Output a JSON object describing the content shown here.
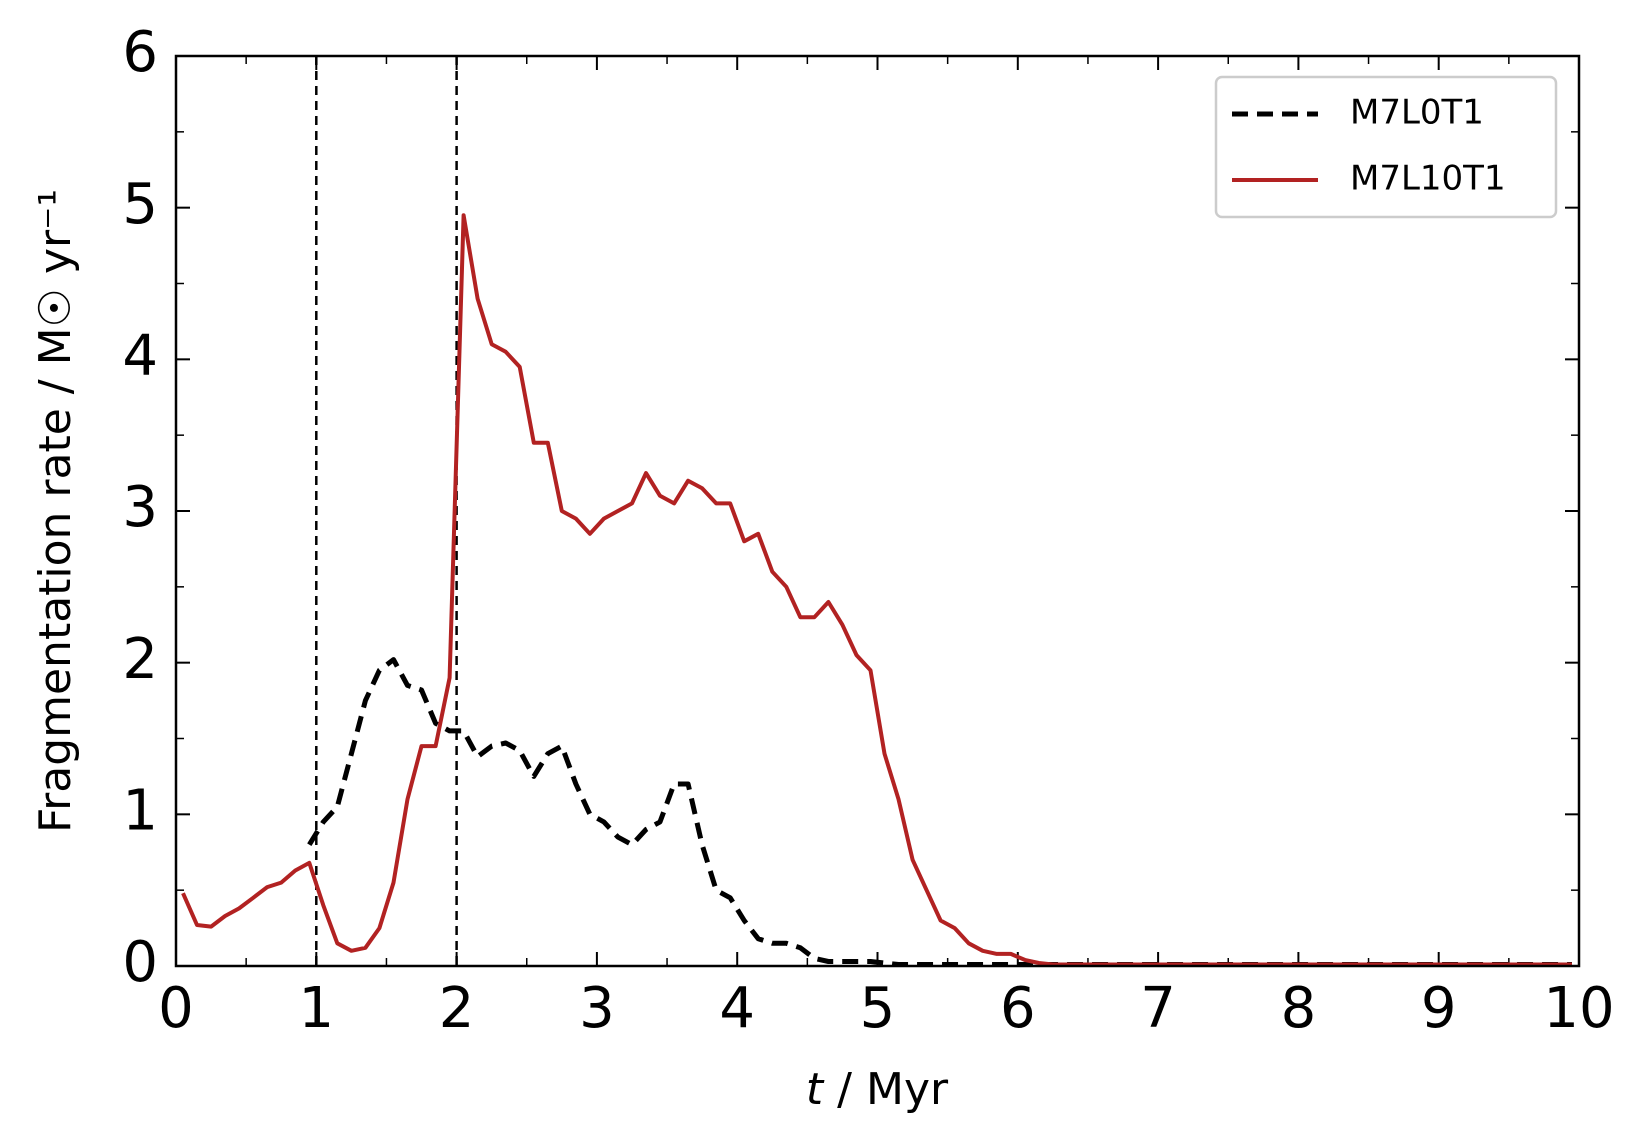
{
  "chart_data": {
    "type": "line",
    "xlabel": {
      "var": "t",
      "unit": " / Myr"
    },
    "ylabel": "Fragmentation rate / M☉ yr⁻¹",
    "x": [
      0.05,
      0.15,
      0.25,
      0.35,
      0.45,
      0.55,
      0.65,
      0.75,
      0.85,
      0.95,
      1.05,
      1.15,
      1.25,
      1.35,
      1.45,
      1.55,
      1.65,
      1.75,
      1.85,
      1.95,
      2.05,
      2.15,
      2.25,
      2.35,
      2.45,
      2.55,
      2.65,
      2.75,
      2.85,
      2.95,
      3.05,
      3.15,
      3.25,
      3.35,
      3.45,
      3.55,
      3.65,
      3.75,
      3.85,
      3.95,
      4.05,
      4.15,
      4.25,
      4.35,
      4.45,
      4.55,
      4.65,
      4.75,
      4.85,
      4.95,
      5.05,
      5.15,
      5.25,
      5.35,
      5.45,
      5.55,
      5.65,
      5.75,
      5.85,
      5.95,
      6.05,
      6.15,
      6.25,
      6.35,
      6.45,
      6.55,
      6.65,
      6.75,
      6.85,
      6.95,
      7.05,
      7.15,
      7.25,
      7.35,
      7.45,
      7.55,
      7.65,
      7.75,
      7.85,
      7.95,
      8.05,
      8.15,
      8.25,
      8.35,
      8.45,
      8.55,
      8.65,
      8.75,
      8.85,
      8.95,
      9.05,
      9.15,
      9.25,
      9.35,
      9.45,
      9.55,
      9.65,
      9.75,
      9.85,
      9.95
    ],
    "series": [
      {
        "name": "M7L0T1",
        "color": "#000000",
        "dash": true,
        "values": [
          null,
          null,
          null,
          null,
          null,
          null,
          null,
          null,
          null,
          0.8,
          0.95,
          1.05,
          1.4,
          1.75,
          1.95,
          2.02,
          1.85,
          1.82,
          1.6,
          1.55,
          1.55,
          1.38,
          1.45,
          1.47,
          1.42,
          1.25,
          1.4,
          1.45,
          1.2,
          1.0,
          0.95,
          0.85,
          0.8,
          0.9,
          0.95,
          1.2,
          1.2,
          0.8,
          0.5,
          0.45,
          0.3,
          0.18,
          0.15,
          0.15,
          0.12,
          0.05,
          0.03,
          0.03,
          0.03,
          0.03,
          0.02,
          0.01,
          0.01,
          0.01,
          0.01,
          0.01,
          0.01,
          0.01,
          0.01,
          0.01,
          0.01,
          0.01,
          0.01,
          0.01,
          0.01,
          0.01,
          0.01,
          0.01,
          0.01,
          0.01,
          0.01,
          0.01,
          0.01,
          0.01,
          0.01,
          0.01,
          0.01,
          0.01,
          0.01,
          0.01,
          0.01,
          0.01,
          0.01,
          0.01,
          0.01,
          0.01,
          0.01,
          0.01,
          0.01,
          0.01,
          0.01,
          0.01,
          0.01,
          0.01,
          0.01,
          0.01,
          0.01,
          0.01,
          0.01,
          0.01
        ]
      },
      {
        "name": "M7L10T1",
        "color": "#b22222",
        "dash": false,
        "values": [
          0.48,
          0.27,
          0.26,
          0.33,
          0.38,
          0.45,
          0.52,
          0.55,
          0.63,
          0.68,
          0.4,
          0.15,
          0.1,
          0.12,
          0.25,
          0.55,
          1.1,
          1.45,
          1.45,
          1.9,
          4.95,
          4.4,
          4.1,
          4.05,
          3.95,
          3.45,
          3.45,
          3.0,
          2.95,
          2.85,
          2.95,
          3.0,
          3.05,
          3.25,
          3.1,
          3.05,
          3.2,
          3.15,
          3.05,
          3.05,
          2.8,
          2.85,
          2.6,
          2.5,
          2.3,
          2.3,
          2.4,
          2.25,
          2.05,
          1.95,
          1.4,
          1.1,
          0.7,
          0.5,
          0.3,
          0.25,
          0.15,
          0.1,
          0.08,
          0.08,
          0.04,
          0.02,
          0.01,
          0.01,
          0.01,
          0.01,
          0.01,
          0.01,
          0.01,
          0.01,
          0.01,
          0.01,
          0.01,
          0.01,
          0.01,
          0.01,
          0.01,
          0.01,
          0.01,
          0.01,
          0.01,
          0.01,
          0.01,
          0.01,
          0.01,
          0.01,
          0.01,
          0.01,
          0.01,
          0.01,
          0.01,
          0.01,
          0.01,
          0.01,
          0.01,
          0.01,
          0.01,
          0.01,
          0.01,
          0.01
        ]
      }
    ],
    "vlines": [
      1,
      2
    ],
    "xlim": [
      0,
      10
    ],
    "xticks": [
      0,
      1,
      2,
      3,
      4,
      5,
      6,
      7,
      8,
      9,
      10
    ],
    "ylim": [
      0,
      6
    ],
    "yticks": [
      0,
      1,
      2,
      3,
      4,
      5,
      6
    ],
    "legend": "upper right",
    "grid": false
  }
}
